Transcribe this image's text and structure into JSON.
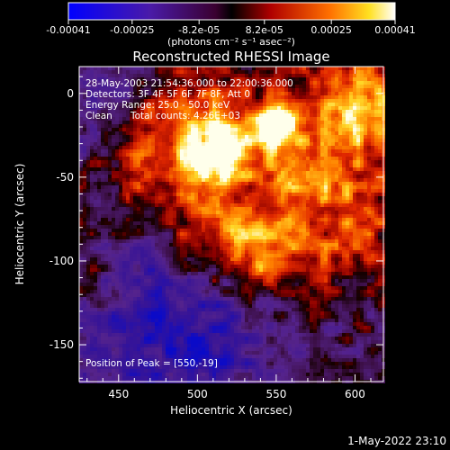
{
  "colorbar": {
    "tick_labels": [
      "-0.00041",
      "-0.00025",
      "-8.2e-05",
      "8.2e-05",
      "0.00025",
      "0.00041"
    ],
    "tick_values": [
      -0.00041,
      -0.00025,
      -8.2e-05,
      8.2e-05,
      0.00025,
      0.00041
    ],
    "range": [
      -0.00041,
      0.00041
    ],
    "units_label": "(photons cm⁻² s⁻¹ asec⁻²)"
  },
  "chart_data": {
    "type": "heatmap",
    "title": "Reconstructed RHESSI Image",
    "xlabel": "Heliocentric X (arcsec)",
    "ylabel": "Heliocentric Y (arcsec)",
    "xlim": [
      425,
      618
    ],
    "ylim": [
      -172,
      16
    ],
    "x_ticks": [
      450,
      500,
      550,
      600
    ],
    "y_ticks": [
      0,
      -50,
      -100,
      -150
    ],
    "x_tick_labels": [
      "450",
      "500",
      "550",
      "600"
    ],
    "y_tick_labels": [
      "0",
      "-50",
      "-100",
      "-150"
    ],
    "peak_position": [
      550,
      -19
    ],
    "colormap": "rhessi-blue-purple-red-yellow-white"
  },
  "annotations": {
    "time_range": "28-May-2003 21:54:36.000 to 22:00:36.000",
    "detectors": "Detectors: 3F 4F 5F 6F 7F 8F, Att 0",
    "energy_range": "Energy Range: 25.0 - 50.0 keV",
    "clean_label": "Clean",
    "total_counts": "Total counts: 4.26E+03",
    "peak_text": "Position of Peak = [550,-19]"
  },
  "footer": {
    "timestamp": "1-May-2022 23:10"
  }
}
